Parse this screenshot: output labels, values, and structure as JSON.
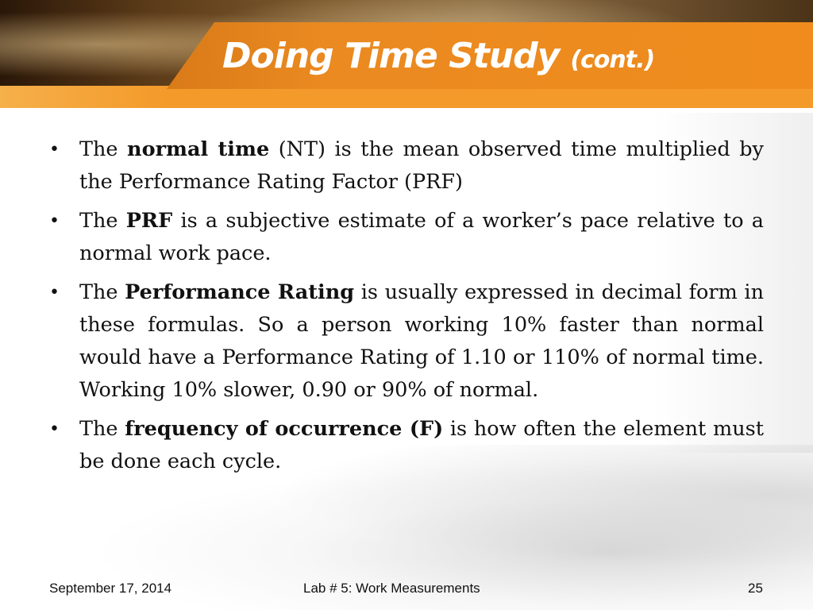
{
  "slide": {
    "title": "Doing Time Study",
    "title_suffix": "(cont.)",
    "bullets": [
      {
        "pre": "The ",
        "bold": "normal time",
        "post": " (NT) is the mean observed time multiplied by the Performance Rating Factor (PRF)"
      },
      {
        "pre": "The ",
        "bold": "PRF",
        "post": " is a subjective estimate of a worker’s pace relative to a normal work pace."
      },
      {
        "pre": "The ",
        "bold": "Performance Rating",
        "post": " is usually expressed in decimal form in these formulas.  So a person working 10% faster than normal would have a Performance Rating of 1.10 or 110% of normal time.  Working 10% slower, 0.90 or 90% of normal."
      },
      {
        "pre": "The ",
        "bold": "frequency of occurrence (F)",
        "post": " is how often the element must be done each cycle."
      }
    ],
    "bullet_glyph": "•"
  },
  "footer": {
    "date": "September 17, 2014",
    "center": "Lab # 5: Work Measurements",
    "page_number": "25"
  },
  "colors": {
    "title_band": "#e07b16",
    "title_text": "#ffffff",
    "body_text": "#111111"
  }
}
